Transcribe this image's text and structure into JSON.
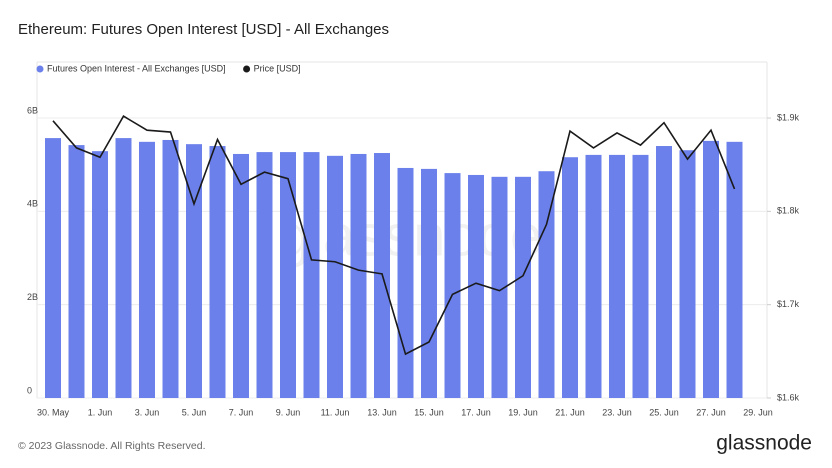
{
  "chart_data": {
    "type": "bar-line",
    "title": "Ethereum: Futures Open Interest [USD] - All Exchanges",
    "footer": "© 2023 Glassnode. All Rights Reserved.",
    "logo": "glassnode",
    "watermark": "glassnode",
    "categories": [
      "30. May",
      null,
      "1. Jun",
      null,
      "3. Jun",
      null,
      "5. Jun",
      null,
      "7. Jun",
      null,
      "9. Jun",
      null,
      "11. Jun",
      null,
      "13. Jun",
      null,
      "15. Jun",
      null,
      "17. Jun",
      null,
      "19. Jun",
      null,
      "21. Jun",
      null,
      "23. Jun",
      null,
      "25. Jun",
      null,
      "27. Jun",
      null,
      "29. Jun"
    ],
    "series": [
      {
        "name": "Futures Open Interest - All Exchanges [USD]",
        "color": "#6b80ea",
        "type": "bar",
        "values": [
          5570000000,
          5420000000,
          5290000000,
          5570000000,
          5490000000,
          5530000000,
          5440000000,
          5400000000,
          5230000000,
          5270000000,
          5270000000,
          5270000000,
          5190000000,
          5230000000,
          5250000000,
          4930000000,
          4910000000,
          4820000000,
          4780000000,
          4740000000,
          4740000000,
          4860000000,
          5160000000,
          5210000000,
          5210000000,
          5210000000,
          5400000000,
          5310000000,
          5510000000,
          5490000000,
          null
        ]
      },
      {
        "name": "Price [USD]",
        "color": "#1a1a1a",
        "type": "line",
        "axis": "y2",
        "values": [
          1897,
          1868,
          1858,
          1902,
          1887,
          1885,
          1808,
          1877,
          1829,
          1842,
          1835,
          1748,
          1746,
          1737,
          1733,
          1647,
          1660,
          1711,
          1723,
          1715,
          1731,
          1786,
          1886,
          1868,
          1884,
          1871,
          1895,
          1856,
          1887,
          1824,
          null
        ]
      }
    ],
    "ylim": [
      0,
      6500000000
    ],
    "yticks": [
      0,
      {
        "value": 2000000000,
        "label": "2B"
      },
      {
        "value": 4000000000,
        "label": "4B"
      },
      {
        "value": 6000000000,
        "label": "6B"
      }
    ],
    "y2lim": [
      1600,
      1925
    ],
    "y2ticks": [
      {
        "value": 1600,
        "label": "$1.6k"
      },
      {
        "value": 1700,
        "label": "$1.7k"
      },
      {
        "value": 1800,
        "label": "$1.8k"
      },
      {
        "value": 1900,
        "label": "$1.9k"
      }
    ],
    "grid": true,
    "legend": "top-left"
  }
}
